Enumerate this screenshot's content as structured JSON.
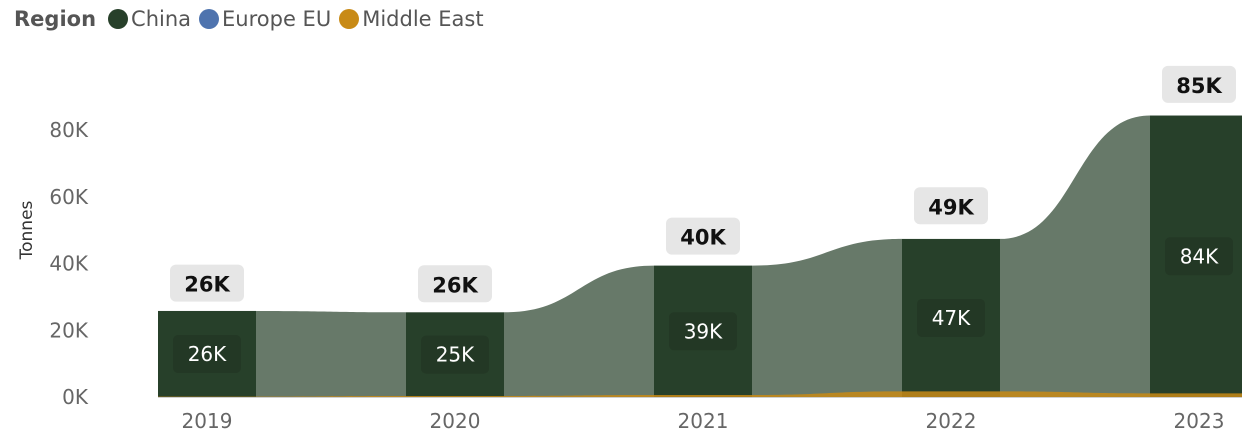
{
  "legend": {
    "title": "Region",
    "items": [
      {
        "label": "China",
        "color": "#27402A"
      },
      {
        "label": "Europe EU",
        "color": "#4E73AE"
      },
      {
        "label": "Middle East",
        "color": "#C88A16"
      }
    ]
  },
  "chart_data": {
    "type": "bar",
    "title": "",
    "xlabel": "",
    "ylabel": "Tonnes",
    "stacked": true,
    "ribbon": true,
    "categories": [
      "2019",
      "2020",
      "2021",
      "2022",
      "2023"
    ],
    "series": [
      {
        "name": "China",
        "color": "#27402A",
        "values": [
          25800,
          25400,
          39400,
          47400,
          84400
        ],
        "labels": [
          "26K",
          "25K",
          "39K",
          "47K",
          "84K"
        ]
      },
      {
        "name": "Europe EU",
        "color": "#4E73AE",
        "values": [
          0,
          0,
          0,
          0,
          0
        ]
      },
      {
        "name": "Middle East",
        "color": "#C88A16",
        "values": [
          100,
          300,
          600,
          1700,
          1100
        ]
      }
    ],
    "totals": [
      25900,
      25700,
      40000,
      49100,
      85500
    ],
    "total_labels": [
      "26K",
      "26K",
      "40K",
      "49K",
      "85K"
    ],
    "yticks": [
      "0K",
      "20K",
      "40K",
      "60K",
      "80K"
    ],
    "ylim": [
      0,
      85500
    ],
    "grid": false,
    "legend_position": "top-left"
  }
}
